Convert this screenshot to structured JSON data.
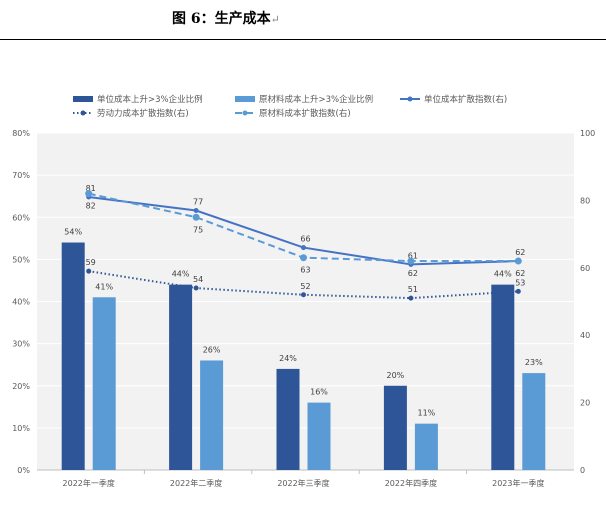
{
  "header": {
    "title": "图 6：生产成本",
    "return_mark": "↵"
  },
  "chart_data": {
    "type": "bar+line",
    "categories": [
      "2022年一季度",
      "2022年二季度",
      "2022年三季度",
      "2022年四季度",
      "2023年一季度"
    ],
    "left_axis": {
      "range": [
        0,
        80
      ],
      "ticks": [
        "0%",
        "10%",
        "20%",
        "30%",
        "40%",
        "50%",
        "60%",
        "70%",
        "80%"
      ]
    },
    "right_axis": {
      "range": [
        0,
        100
      ],
      "ticks": [
        "0",
        "20",
        "40",
        "60",
        "80",
        "100"
      ]
    },
    "grid": true,
    "legend_placement": "top",
    "bar_series": [
      {
        "name": "单位成本上升>3%企业比例",
        "values": [
          54,
          44,
          24,
          20,
          44
        ],
        "labels": [
          "54%",
          "44%",
          "24%",
          "20%",
          "44%"
        ],
        "color": "#2e5597"
      },
      {
        "name": "原材料成本上升>3%企业比例",
        "values": [
          41,
          26,
          16,
          11,
          23
        ],
        "labels": [
          "41%",
          "26%",
          "16%",
          "11%",
          "23%"
        ],
        "color": "#5b9bd5"
      }
    ],
    "line_series": [
      {
        "name": "单位成本扩散指数(右)",
        "values": [
          81,
          77,
          66,
          61,
          62
        ],
        "style": "solid",
        "color": "#4472c4"
      },
      {
        "name": "劳动力成本扩散指数(右)",
        "values": [
          59,
          54,
          52,
          51,
          53
        ],
        "style": "dotted",
        "color": "#2f5597"
      },
      {
        "name": "原材料成本扩散指数(右)",
        "values": [
          82,
          75,
          63,
          62,
          62
        ],
        "style": "dashed",
        "color": "#5b9bd5"
      }
    ]
  }
}
